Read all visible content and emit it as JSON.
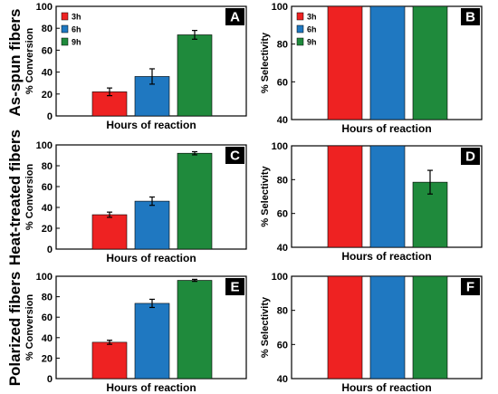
{
  "row_labels": [
    "As-spun fibers",
    "Heat-treated fibers",
    "Polarized fibers"
  ],
  "legend": [
    {
      "label": "3h",
      "color": "#ee2222"
    },
    {
      "label": "6h",
      "color": "#1f78c1"
    },
    {
      "label": "9h",
      "color": "#1f8a3c"
    }
  ],
  "chart_data": [
    {
      "type": "bar",
      "panel": "A",
      "xlabel": "Hours of reaction",
      "ylabel": "% Conversion",
      "ylim": [
        0,
        100
      ],
      "yticks": [
        "0",
        "20",
        "40",
        "60",
        "80",
        "100"
      ],
      "legend": "top-left",
      "series": [
        {
          "name": "3h",
          "values": [
            22
          ],
          "error": [
            3.5
          ]
        },
        {
          "name": "6h",
          "values": [
            36
          ],
          "error": [
            7
          ]
        },
        {
          "name": "9h",
          "values": [
            74
          ],
          "error": [
            4
          ]
        }
      ]
    },
    {
      "type": "bar",
      "panel": "B",
      "xlabel": "Hours of reaction",
      "ylabel": "% Selectivity",
      "ylim": [
        40,
        100
      ],
      "yticks": [
        "40",
        "60",
        "80",
        "100"
      ],
      "legend": "top-left",
      "series": [
        {
          "name": "3h",
          "values": [
            100
          ],
          "error": [
            0
          ]
        },
        {
          "name": "6h",
          "values": [
            100
          ],
          "error": [
            0
          ]
        },
        {
          "name": "9h",
          "values": [
            100
          ],
          "error": [
            0
          ]
        }
      ]
    },
    {
      "type": "bar",
      "panel": "C",
      "xlabel": "Hours of reaction",
      "ylabel": "% Conversion",
      "ylim": [
        0,
        100
      ],
      "yticks": [
        "0",
        "20",
        "40",
        "60",
        "80",
        "100"
      ],
      "legend": "none",
      "series": [
        {
          "name": "3h",
          "values": [
            33
          ],
          "error": [
            2.5
          ]
        },
        {
          "name": "6h",
          "values": [
            46
          ],
          "error": [
            4
          ]
        },
        {
          "name": "9h",
          "values": [
            92
          ],
          "error": [
            1.5
          ]
        }
      ]
    },
    {
      "type": "bar",
      "panel": "D",
      "xlabel": "Hours of reaction",
      "ylabel": "% Selectivity",
      "ylim": [
        40,
        100
      ],
      "yticks": [
        "40",
        "60",
        "80",
        "100"
      ],
      "legend": "none",
      "series": [
        {
          "name": "3h",
          "values": [
            100
          ],
          "error": [
            0
          ]
        },
        {
          "name": "6h",
          "values": [
            100
          ],
          "error": [
            0
          ]
        },
        {
          "name": "9h",
          "values": [
            78.5
          ],
          "error": [
            7
          ]
        }
      ]
    },
    {
      "type": "bar",
      "panel": "E",
      "xlabel": "Hours of reaction",
      "ylabel": "% Conversion",
      "ylim": [
        0,
        100
      ],
      "yticks": [
        "0",
        "20",
        "40",
        "60",
        "80",
        "100"
      ],
      "legend": "none",
      "series": [
        {
          "name": "3h",
          "values": [
            35.5
          ],
          "error": [
            2
          ]
        },
        {
          "name": "6h",
          "values": [
            73.5
          ],
          "error": [
            4
          ]
        },
        {
          "name": "9h",
          "values": [
            96
          ],
          "error": [
            1
          ]
        }
      ]
    },
    {
      "type": "bar",
      "panel": "F",
      "xlabel": "Hours of reaction",
      "ylabel": "% Selectivity",
      "ylim": [
        40,
        100
      ],
      "yticks": [
        "40",
        "60",
        "80",
        "100"
      ],
      "legend": "none",
      "series": [
        {
          "name": "3h",
          "values": [
            100
          ],
          "error": [
            0
          ]
        },
        {
          "name": "6h",
          "values": [
            100
          ],
          "error": [
            0
          ]
        },
        {
          "name": "9h",
          "values": [
            100
          ],
          "error": [
            0
          ]
        }
      ]
    }
  ]
}
